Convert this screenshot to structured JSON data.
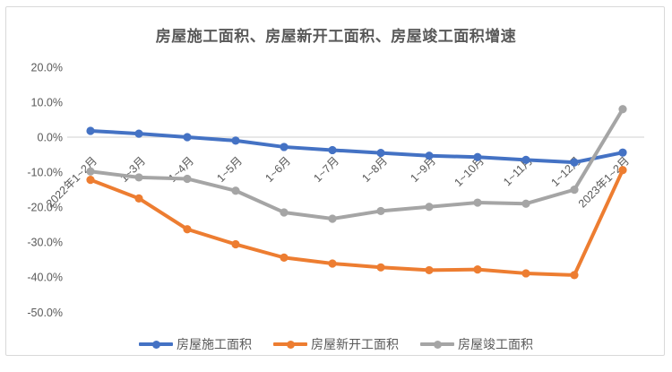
{
  "chart_data": {
    "type": "line",
    "title": "房屋施工面积、房屋新开工面积、房屋竣工面积增速",
    "categories": [
      "2022年1~2月",
      "1~3月",
      "1~4月",
      "1~5月",
      "1~6月",
      "1~7月",
      "1~8月",
      "1~9月",
      "1~10月",
      "1~11月",
      "1~12月",
      "2023年1~2月"
    ],
    "series": [
      {
        "name": "房屋施工面积",
        "color": "#4472C4",
        "values": [
          1.8,
          1.0,
          0.0,
          -1.0,
          -2.8,
          -3.7,
          -4.5,
          -5.3,
          -5.7,
          -6.5,
          -7.2,
          -4.4
        ]
      },
      {
        "name": "房屋新开工面积",
        "color": "#ED7D31",
        "values": [
          -12.2,
          -17.5,
          -26.3,
          -30.6,
          -34.4,
          -36.1,
          -37.2,
          -38.0,
          -37.8,
          -38.9,
          -39.4,
          -9.4
        ]
      },
      {
        "name": "房屋竣工面积",
        "color": "#A5A5A5",
        "values": [
          -9.8,
          -11.5,
          -11.9,
          -15.3,
          -21.5,
          -23.3,
          -21.1,
          -19.9,
          -18.7,
          -19.0,
          -15.0,
          8.0
        ]
      }
    ],
    "y_axis": {
      "min": -50,
      "max": 20,
      "tick_step": 10,
      "unit": "%",
      "tick_labels": [
        "20.0%",
        "10.0%",
        "0.0%",
        "-10.0%",
        "-20.0%",
        "-30.0%",
        "-40.0%",
        "-50.0%"
      ],
      "tick_values": [
        20,
        10,
        0,
        -10,
        -20,
        -30,
        -40,
        -50
      ]
    },
    "legend": {
      "position": "bottom",
      "entries": [
        "房屋施工面积",
        "房屋新开工面积",
        "房屋竣工面积"
      ]
    },
    "grid": false,
    "axis_color": "#D9D9D9",
    "text_color": "#595959"
  }
}
